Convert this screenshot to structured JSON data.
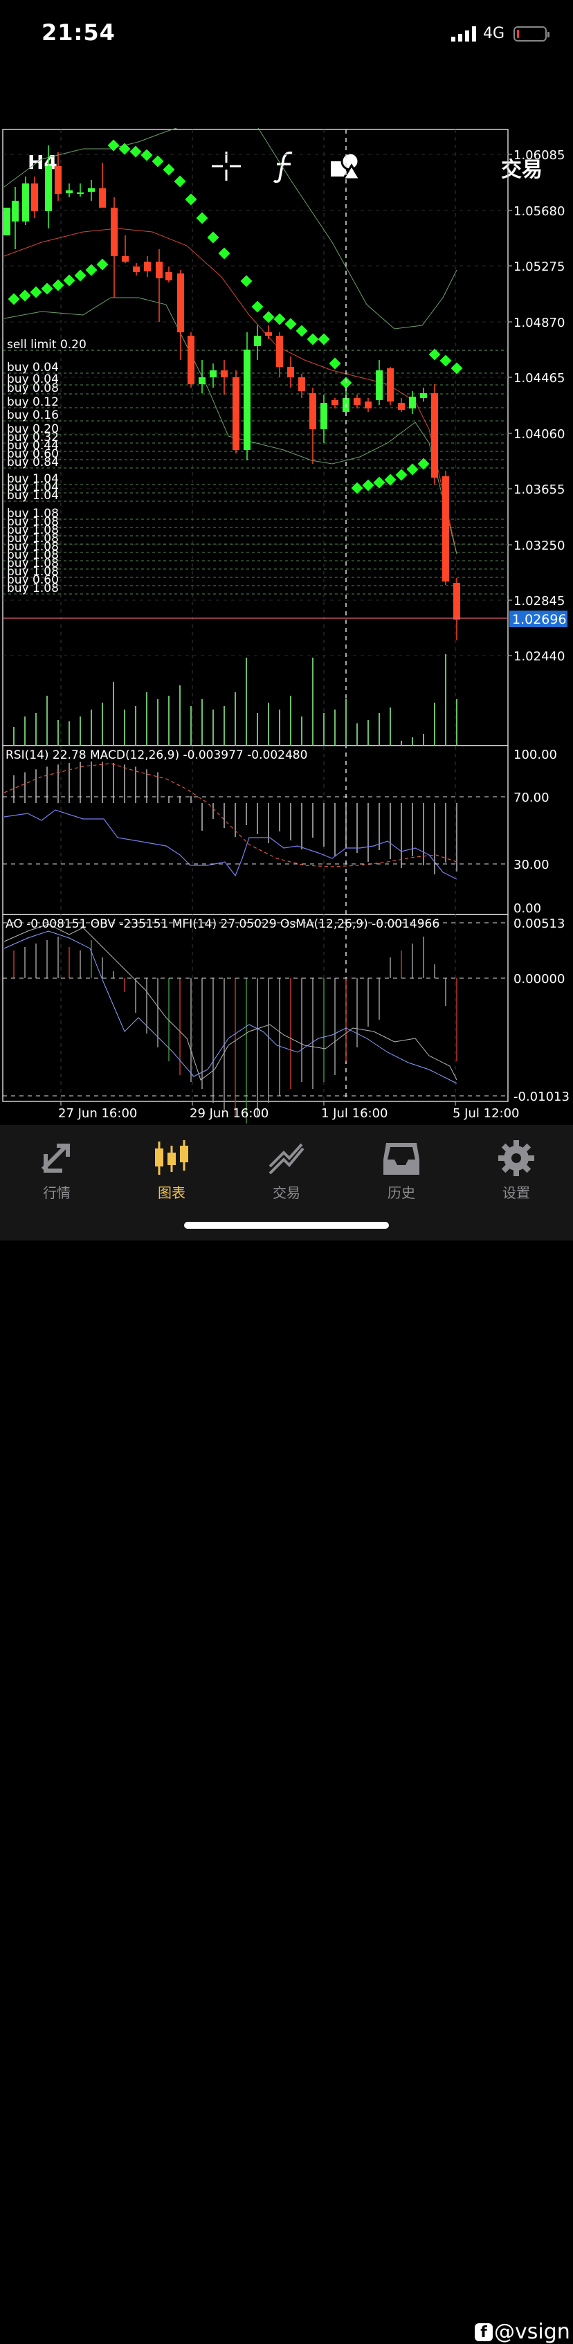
{
  "status_bar": {
    "time": "21:54",
    "network": "4G"
  },
  "toolbar": {
    "timeframe": "H4",
    "trade_label": "交易"
  },
  "price_axis": [
    "1.06085",
    "1.05680",
    "1.05275",
    "1.04870",
    "1.04465",
    "1.04060",
    "1.03655",
    "1.03250",
    "1.02845",
    "1.02440"
  ],
  "current_price": "1.02696",
  "time_axis": [
    "27 Jun 16:00",
    "29 Jun 16:00",
    "1 Jul 16:00",
    "5 Jul 12:00"
  ],
  "orders": {
    "sell": [
      "sell limit 0.20"
    ],
    "buy": [
      "buy 0.04",
      "buy 0.04",
      "buy 0.08",
      "buy 0.12",
      "buy 0.16",
      "buy 0.20",
      "buy 0.32",
      "buy 0.44",
      "buy 0.60",
      "buy 0.84",
      "buy 1.04",
      "buy 1.04",
      "buy 1.04",
      "buy 1.08",
      "buy 1.08",
      "buy 1.08",
      "buy 1.08",
      "buy 1.08",
      "buy 1.08",
      "buy 1.08",
      "buy 1.08",
      "buy 0.60",
      "buy 1.08"
    ]
  },
  "panel2": {
    "label": "RSI(14) 22.78 MACD(12,26,9) -0.003977 -0.002480",
    "axis": [
      "100.00",
      "70.00",
      "30.00",
      "0.00"
    ]
  },
  "panel3": {
    "label": "AO -0.008151 OBV -235151 MFI(14) 27.05029 OsMA(12,26,9) -0.0014966",
    "axis": [
      "0.00513",
      "0.00000",
      "-0.01013"
    ]
  },
  "tabs": [
    {
      "label": "行情",
      "icon": "quotes-icon"
    },
    {
      "label": "图表",
      "icon": "chart-candles-icon"
    },
    {
      "label": "交易",
      "icon": "trade-icon"
    },
    {
      "label": "历史",
      "icon": "history-inbox-icon"
    },
    {
      "label": "设置",
      "icon": "settings-gear-icon"
    }
  ],
  "watermark": "@vsign",
  "colors": {
    "bull": "#39ff39",
    "bear": "#ff4527",
    "sar": "#22ff22",
    "active_tab": "#f3c24b",
    "price_tag": "#1f6fd6"
  }
}
